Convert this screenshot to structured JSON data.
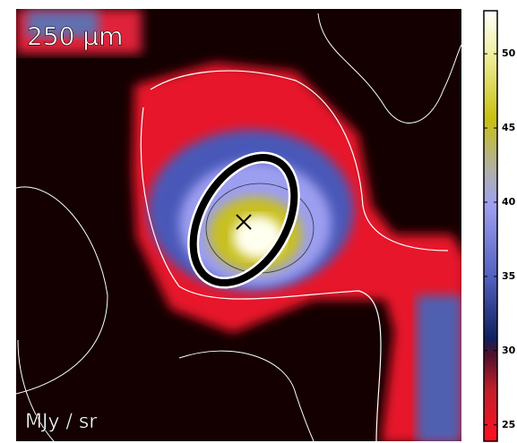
{
  "chart_data": {
    "type": "image",
    "title": "250 μm",
    "colorbar_label": "MJy / sr",
    "colorbar_lim": [
      23.9,
      52.9
    ],
    "colorbar_ticks": [
      25,
      30,
      35,
      40,
      45,
      50
    ]
  }
}
